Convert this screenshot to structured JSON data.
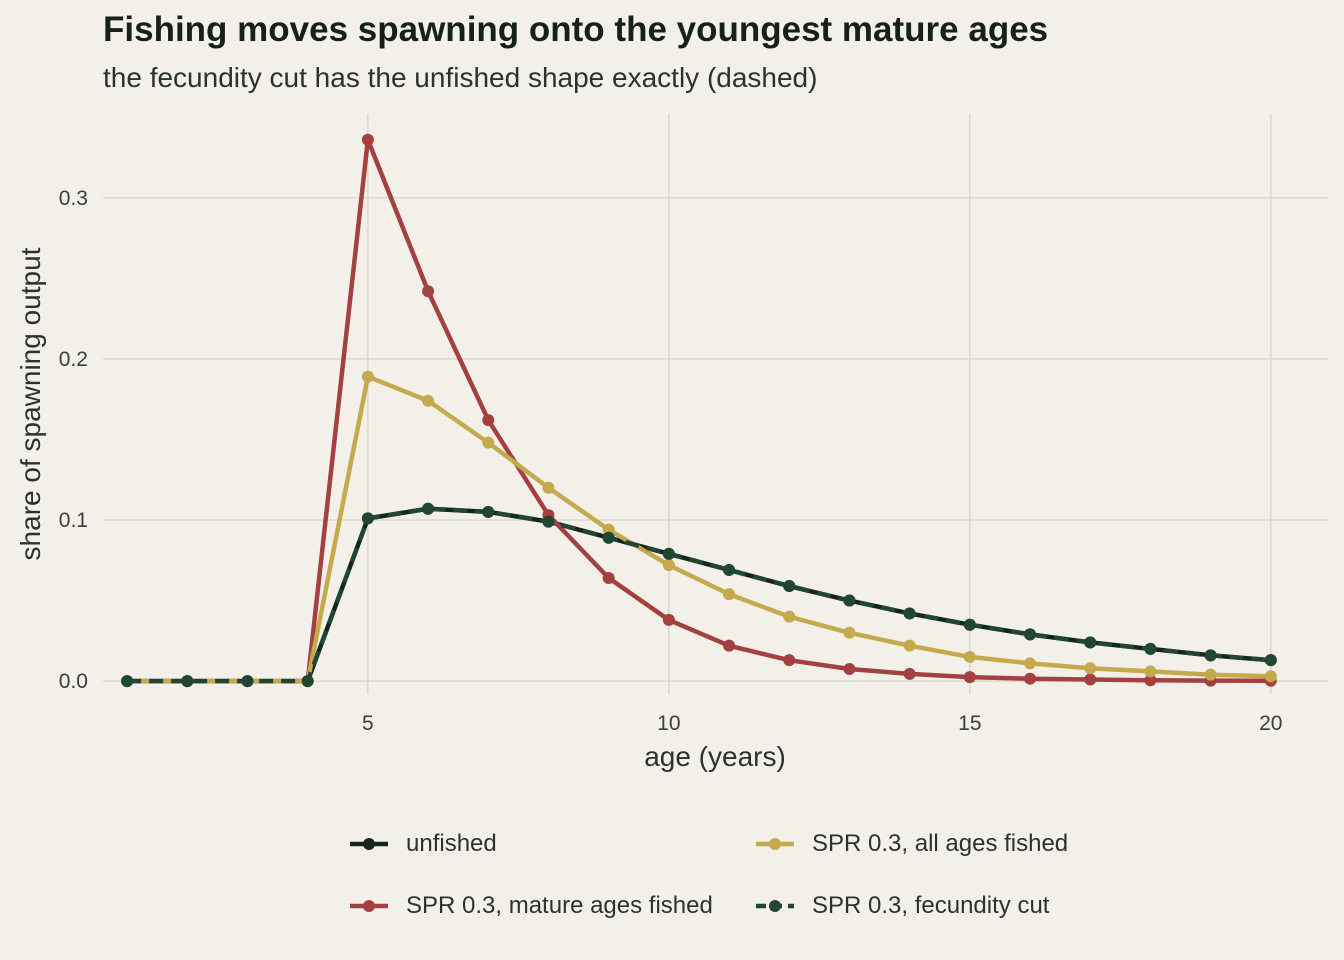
{
  "title": "Fishing moves spawning onto the youngest mature ages",
  "subtitle": "the fecundity cut has the unfished shape exactly (dashed)",
  "colors": {
    "background": "#f2f0e9",
    "grid": "#d6d6c6",
    "unfished": "#16251c",
    "mature_fished": "#a44040",
    "all_fished": "#c4aa4c",
    "fecundity_cut": "#214633"
  },
  "chart_data": {
    "type": "line",
    "xlabel": "age (years)",
    "ylabel": "share of spawning output",
    "xlim": [
      0.6,
      20.95
    ],
    "ylim": [
      -0.008,
      0.352
    ],
    "x_ticks": [
      5,
      10,
      15,
      20
    ],
    "y_ticks": [
      0.0,
      0.1,
      0.2,
      0.3
    ],
    "x_tick_labels": [
      "5",
      "10",
      "15",
      "20"
    ],
    "y_tick_labels": [
      "0.0",
      "0.1",
      "0.2",
      "0.3"
    ],
    "grid": true,
    "legend_position": "bottom",
    "x": [
      1,
      2,
      3,
      4,
      5,
      6,
      7,
      8,
      9,
      10,
      11,
      12,
      13,
      14,
      15,
      16,
      17,
      18,
      19,
      20
    ],
    "series": [
      {
        "name": "unfished",
        "color_key": "unfished",
        "dashed": false,
        "values": [
          0,
          0,
          0,
          0,
          0.101,
          0.107,
          0.105,
          0.099,
          0.089,
          0.079,
          0.069,
          0.059,
          0.05,
          0.042,
          0.035,
          0.029,
          0.024,
          0.02,
          0.016,
          0.013
        ]
      },
      {
        "name": "SPR 0.3, mature ages fished",
        "color_key": "mature_fished",
        "dashed": false,
        "values": [
          0,
          0,
          0,
          0,
          0.336,
          0.242,
          0.162,
          0.103,
          0.064,
          0.038,
          0.022,
          0.013,
          0.0075,
          0.0045,
          0.0025,
          0.0015,
          0.001,
          0.0005,
          0.0003,
          0.0002
        ]
      },
      {
        "name": "SPR 0.3, all ages fished",
        "color_key": "all_fished",
        "dashed": false,
        "values": [
          0,
          0,
          0,
          0,
          0.189,
          0.174,
          0.148,
          0.12,
          0.094,
          0.072,
          0.054,
          0.04,
          0.03,
          0.022,
          0.015,
          0.011,
          0.008,
          0.006,
          0.004,
          0.003
        ]
      },
      {
        "name": "SPR 0.3, fecundity cut",
        "color_key": "fecundity_cut",
        "dashed": true,
        "values": [
          0,
          0,
          0,
          0,
          0.101,
          0.107,
          0.105,
          0.099,
          0.089,
          0.079,
          0.069,
          0.059,
          0.05,
          0.042,
          0.035,
          0.029,
          0.024,
          0.02,
          0.016,
          0.013
        ]
      }
    ]
  },
  "legend": [
    {
      "label": "unfished",
      "color_key": "unfished",
      "dashed": false
    },
    {
      "label": "SPR 0.3, all ages fished",
      "color_key": "all_fished",
      "dashed": false
    },
    {
      "label": "SPR 0.3, mature ages fished",
      "color_key": "mature_fished",
      "dashed": false
    },
    {
      "label": "SPR 0.3, fecundity cut",
      "color_key": "fecundity_cut",
      "dashed": true
    }
  ]
}
